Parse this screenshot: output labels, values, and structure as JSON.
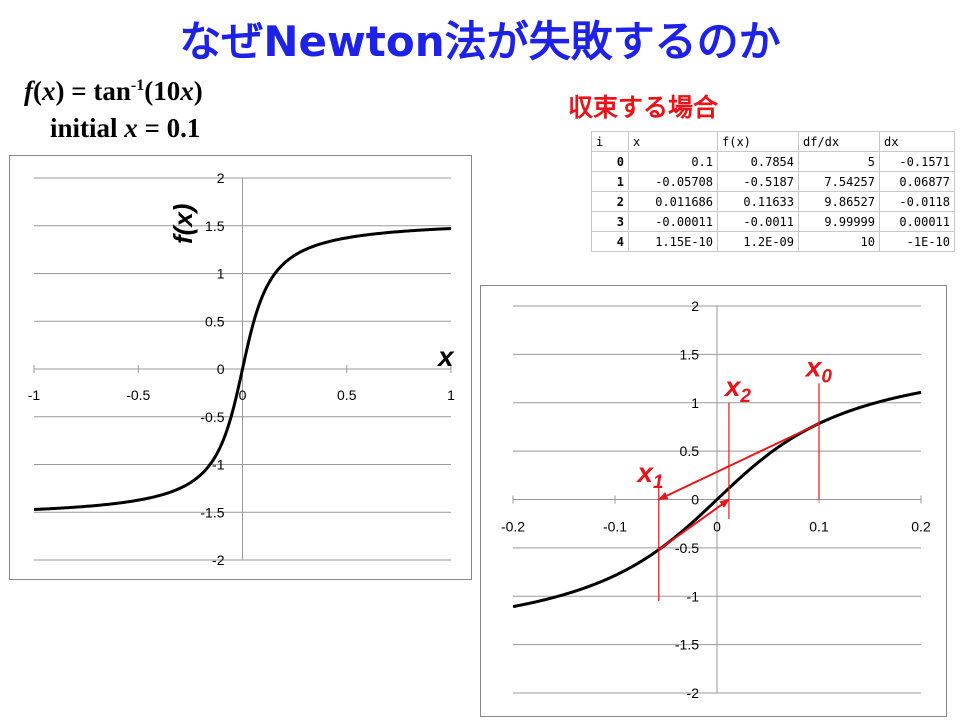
{
  "title": "なぜNewton法が失敗するのか",
  "formula": {
    "fx": "f",
    "x1": "x",
    "eq": ") = tan",
    "sup": "-1",
    "arg_open": "(10",
    "x2": "x",
    "arg_close": ")",
    "initial_label": "initial ",
    "initial_var": "x",
    "initial_value": " = 0.1"
  },
  "subtitle": "収束する場合",
  "table": {
    "headers": [
      "i",
      "x",
      "f(x)",
      "df/dx",
      "dx"
    ],
    "rows": [
      [
        "0",
        "0.1",
        "0.7854",
        "5",
        "-0.1571"
      ],
      [
        "1",
        "-0.05708",
        "-0.5187",
        "7.54257",
        "0.06877"
      ],
      [
        "2",
        "0.011686",
        "0.11633",
        "9.86527",
        "-0.0118"
      ],
      [
        "3",
        "-0.00011",
        "-0.0011",
        "9.99999",
        "0.00011"
      ],
      [
        "4",
        "1.15E-10",
        "1.2E-09",
        "10",
        "-1E-10"
      ]
    ]
  },
  "colors": {
    "title": "#1d22e6",
    "accent": "#e8141a",
    "curve": "#000000",
    "grid": "#999999"
  },
  "chart_data": [
    {
      "type": "line",
      "function": "f(x) = tan^-1(10x)",
      "ylabel": "f(x)",
      "xlabel": "x",
      "xlim": [
        -1,
        1
      ],
      "ylim": [
        -2,
        2
      ],
      "xticks": [
        "-1",
        "-0.5",
        "0",
        "0.5",
        "1"
      ],
      "yticks": [
        "2",
        "1.5",
        "1",
        "0.5",
        "0",
        "-0.5",
        "-1",
        "-1.5",
        "-2"
      ],
      "grid": true
    },
    {
      "type": "line",
      "function": "f(x) = tan^-1(10x)",
      "xlim": [
        -0.2,
        0.2
      ],
      "ylim": [
        -2,
        2
      ],
      "xticks": [
        "-0.2",
        "-0.1",
        "0",
        "0.1",
        "0.2"
      ],
      "yticks": [
        "2",
        "1.5",
        "1",
        "0.5",
        "0",
        "-0.5",
        "-1",
        "-1.5",
        "-2"
      ],
      "grid": true,
      "newton_iterates": [
        0.1,
        -0.05708,
        0.011686
      ],
      "annotations": [
        {
          "var": "x",
          "sub": "0"
        },
        {
          "var": "x",
          "sub": "1"
        },
        {
          "var": "x",
          "sub": "2"
        }
      ]
    }
  ]
}
